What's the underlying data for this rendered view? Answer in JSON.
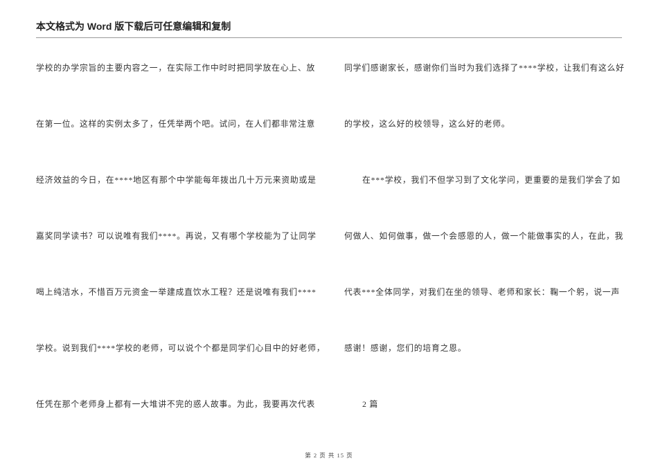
{
  "header": "本文格式为 Word 版下载后可任意编辑和复制",
  "left": [
    "学校的办学宗旨的主要内容之一，在实际工作中时时把同学放在心上、放",
    "在第一位。这样的实例太多了，任凭举两个吧。试问，在人们都非常注意",
    "经济效益的今日，在****地区有那个中学能每年拨出几十万元来资助或是",
    "嘉奖同学读书？可以说唯有我们****。再说，又有哪个学校能为了让同学",
    "喝上纯洁水，不惜百万元资金一举建成直饮水工程？还是说唯有我们****",
    "学校。说到我们****学校的老师，可以说个个都是同学们心目中的好老师，",
    "任凭在那个老师身上都有一大堆讲不完的惑人故事。为此，我要再次代表"
  ],
  "right": [
    {
      "text": "同学们感谢家长，感谢你们当时为我们选择了****学校，让我们有这么好",
      "indent": false
    },
    {
      "text": "的学校，这么好的校领导，这么好的老师。",
      "indent": false
    },
    {
      "text": "在***学校，我们不但学习到了文化学问，更重要的是我们学会了如",
      "indent": true
    },
    {
      "text": "何做人、如何做事，做一个会感恩的人，做一个能做事实的人，在此，我",
      "indent": false
    },
    {
      "text": "代表***全体同学，对我们在坐的领导、老师和家长：鞠一个躬，说一声",
      "indent": false
    },
    {
      "text": "感谢！感谢，您们的培育之恩。",
      "indent": false
    },
    {
      "text": "2 篇",
      "indent": true
    }
  ],
  "footer": "第 2 页 共 15 页"
}
